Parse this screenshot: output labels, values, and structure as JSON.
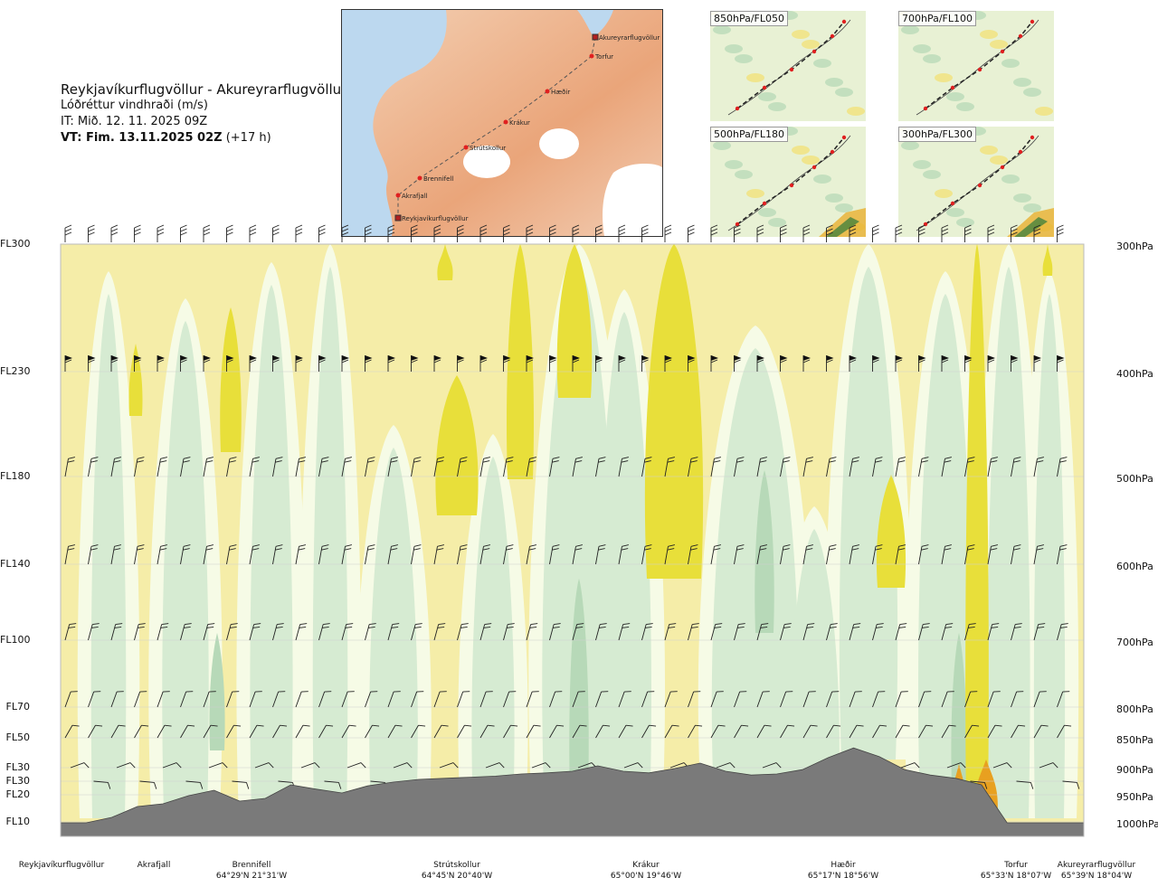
{
  "header": {
    "route_title": "Reykjavíkurflugvöllur - Akureyrarflugvöllur",
    "subtitle": "Lóðréttur vindhraði (m/s)",
    "it_line": "IT: Mið. 12. 11. 2025 09Z",
    "vt_bold": "VT: Fim. 13.11.2025 02Z",
    "vt_suffix": " (+17 h)"
  },
  "map": {
    "points": [
      {
        "name": "Akureyrarflugvöllur"
      },
      {
        "name": "Torfur"
      },
      {
        "name": "Hæðir"
      },
      {
        "name": "Krákur"
      },
      {
        "name": "Strútskollur"
      },
      {
        "name": "Brennifell"
      },
      {
        "name": "Akrafjall"
      },
      {
        "name": "Reykjavíkurflugvöllur"
      }
    ]
  },
  "minimaps": [
    {
      "label": "850hPa/FL050"
    },
    {
      "label": "700hPa/FL100"
    },
    {
      "label": "500hPa/FL180"
    },
    {
      "label": "300hPa/FL300"
    }
  ],
  "chart_data": {
    "type": "heatmap",
    "title": "Lóðréttur vindhraði (m/s)",
    "levels": [
      {
        "fl": "FL300",
        "hpa": "300hPa"
      },
      {
        "fl": "FL230",
        "hpa": "400hPa"
      },
      {
        "fl": "FL180",
        "hpa": "500hPa"
      },
      {
        "fl": "FL140",
        "hpa": "600hPa"
      },
      {
        "fl": "FL100",
        "hpa": "700hPa"
      },
      {
        "fl": "FL70",
        "hpa": "800hPa"
      },
      {
        "fl": "FL50",
        "hpa": "850hPa"
      },
      {
        "fl": "FL30",
        "hpa": "900hPa"
      },
      {
        "fl": "FL30",
        "hpa": ""
      },
      {
        "fl": "FL20",
        "hpa": "950hPa"
      },
      {
        "fl": "FL10",
        "hpa": "1000hPa"
      }
    ],
    "x_stations": [
      {
        "name": "Reykjavíkurflugvöllur",
        "coord": ""
      },
      {
        "name": "Akrafjall",
        "coord": ""
      },
      {
        "name": "Brennifell",
        "coord": "64°29'N 21°31'W"
      },
      {
        "name": "Strútskollur",
        "coord": "64°45'N 20°40'W"
      },
      {
        "name": "Krákur",
        "coord": "65°00'N 19°46'W"
      },
      {
        "name": "Hæðir",
        "coord": "65°17'N 18°56'W"
      },
      {
        "name": "Torfur",
        "coord": "65°33'N 18°07'W"
      },
      {
        "name": "Akureyrarflugvöllur",
        "coord": "65°39'N 18°04'W"
      }
    ],
    "terrain_profile": [
      0,
      0,
      10,
      30,
      35,
      50,
      60,
      40,
      45,
      70,
      62,
      55,
      68,
      75,
      80,
      82,
      84,
      86,
      90,
      92,
      95,
      105,
      95,
      92,
      100,
      110,
      95,
      88,
      90,
      98,
      120,
      138,
      122,
      98,
      88,
      82,
      70,
      0,
      0,
      0,
      0
    ],
    "colors": {
      "updraft_weak": "#f5eda8",
      "updraft_mod": "#e8df3a",
      "updraft_strong": "#e8a020",
      "neutral": "#f6fbe6",
      "downdraft_weak": "#d6ebd2",
      "downdraft_mod": "#b7d9b8",
      "terrain": "#7a7a7a"
    }
  }
}
